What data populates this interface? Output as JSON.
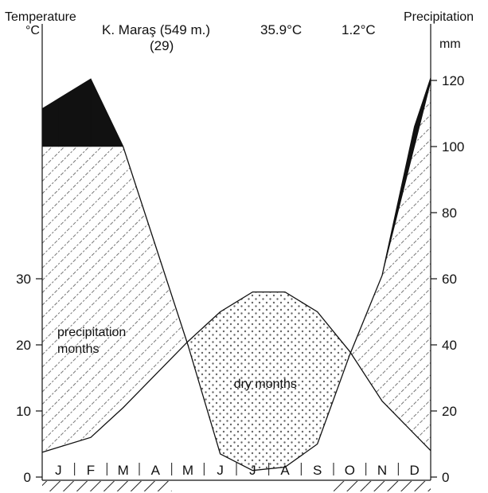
{
  "chart_data": {
    "type": "climate-diagram",
    "header": {
      "station": "K. Maraş (549 m.)",
      "years": "(29)",
      "max_temp": "35.9°C",
      "min_temp": "1.2°C"
    },
    "left_axis": {
      "title": "Temperature",
      "unit": "°C",
      "ticks": [
        0,
        10,
        20,
        30
      ],
      "range": [
        0,
        70
      ]
    },
    "right_axis": {
      "title": "Precipitation",
      "unit": "mm",
      "ticks": [
        0,
        20,
        40,
        60,
        80,
        100,
        120
      ],
      "range": [
        0,
        140
      ],
      "compressed_above": 100
    },
    "months": [
      "J",
      "F",
      "M",
      "A",
      "M",
      "J",
      "J",
      "A",
      "S",
      "O",
      "N",
      "D"
    ],
    "temperature_c": [
      4.5,
      6.0,
      10.5,
      15.5,
      20.5,
      25.0,
      28.0,
      28.0,
      25.0,
      19.0,
      11.5,
      6.5
    ],
    "precipitation_mm": [
      124,
      134,
      100,
      70,
      40,
      7,
      2,
      3,
      10,
      37,
      61,
      110
    ],
    "annotations": {
      "wet": "precipitation months",
      "dry": "dry months"
    },
    "frost_months": [
      0,
      1,
      2,
      3,
      9,
      10,
      11
    ],
    "colors": {
      "line": "#111111",
      "excess": "#111111",
      "hatch": "#555555",
      "dots": "#666666"
    }
  }
}
